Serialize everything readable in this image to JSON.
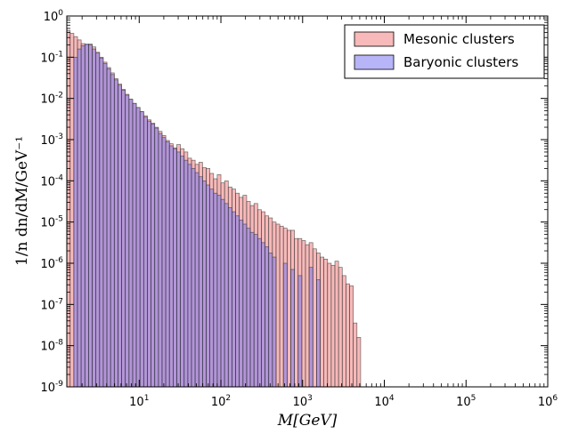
{
  "chart_data": {
    "type": "bar",
    "xlabel": "M[GeV]",
    "ylabel": "1/n  dn/dM/GeV⁻¹",
    "x_scale": "log",
    "y_scale": "log",
    "xlim": [
      1.3,
      1000000
    ],
    "ylim": [
      1e-09,
      1
    ],
    "x_ticks": [
      {
        "value": 10,
        "base": "10",
        "exp": "1"
      },
      {
        "value": 100,
        "base": "10",
        "exp": "2"
      },
      {
        "value": 1000,
        "base": "10",
        "exp": "3"
      },
      {
        "value": 10000,
        "base": "10",
        "exp": "4"
      },
      {
        "value": 100000,
        "base": "10",
        "exp": "5"
      },
      {
        "value": 1000000,
        "base": "10",
        "exp": "6"
      }
    ],
    "y_ticks": [
      {
        "value": 1e-09,
        "base": "10",
        "exp": "-9"
      },
      {
        "value": 1e-08,
        "base": "10",
        "exp": "-8"
      },
      {
        "value": 1e-07,
        "base": "10",
        "exp": "-7"
      },
      {
        "value": 1e-06,
        "base": "10",
        "exp": "-6"
      },
      {
        "value": 1e-05,
        "base": "10",
        "exp": "-5"
      },
      {
        "value": 0.0001,
        "base": "10",
        "exp": "-4"
      },
      {
        "value": 0.001,
        "base": "10",
        "exp": "-3"
      },
      {
        "value": 0.01,
        "base": "10",
        "exp": "-2"
      },
      {
        "value": 0.1,
        "base": "10",
        "exp": "-1"
      },
      {
        "value": 1,
        "base": "10",
        "exp": "0"
      }
    ],
    "bin_edges_log10": [
      0.11,
      0.155,
      0.2,
      0.245,
      0.29,
      0.335,
      0.38,
      0.425,
      0.47,
      0.515,
      0.56,
      0.605,
      0.65,
      0.695,
      0.74,
      0.785,
      0.83,
      0.875,
      0.92,
      0.965,
      1.01,
      1.055,
      1.1,
      1.145,
      1.19,
      1.235,
      1.28,
      1.325,
      1.37,
      1.415,
      1.46,
      1.505,
      1.55,
      1.595,
      1.64,
      1.685,
      1.73,
      1.775,
      1.82,
      1.865,
      1.91,
      1.955,
      2.0,
      2.045,
      2.09,
      2.135,
      2.18,
      2.225,
      2.27,
      2.315,
      2.36,
      2.405,
      2.45,
      2.495,
      2.54,
      2.585,
      2.63,
      2.675,
      2.72,
      2.765,
      2.81,
      2.855,
      2.9,
      2.945,
      2.99,
      3.035,
      3.08,
      3.125,
      3.17,
      3.215,
      3.26,
      3.305,
      3.35,
      3.395,
      3.44,
      3.485,
      3.53,
      3.575,
      3.62,
      3.665,
      3.71
    ],
    "series": [
      {
        "name": "Mesonic clusters",
        "color": "#f08080",
        "values_log10": [
          -0.35,
          -0.42,
          -0.5,
          -0.58,
          -0.67,
          -0.7,
          -0.68,
          -0.75,
          -0.88,
          -1.0,
          -1.12,
          -1.25,
          -1.38,
          -1.52,
          -1.65,
          -1.78,
          -1.9,
          -2.02,
          -2.12,
          -2.22,
          -2.32,
          -2.42,
          -2.52,
          -2.6,
          -2.7,
          -2.8,
          -2.9,
          -3.02,
          -3.1,
          -3.2,
          -3.12,
          -3.22,
          -3.3,
          -3.45,
          -3.5,
          -3.6,
          -3.55,
          -3.68,
          -3.7,
          -3.82,
          -3.95,
          -3.85,
          -4.05,
          -4.0,
          -4.15,
          -4.2,
          -4.3,
          -4.4,
          -4.35,
          -4.5,
          -4.6,
          -4.55,
          -4.7,
          -4.75,
          -4.85,
          -4.9,
          -5.0,
          -5.05,
          -5.1,
          -5.15,
          -5.2,
          -5.2,
          -5.4,
          -5.4,
          -5.45,
          -5.55,
          -5.5,
          -5.65,
          -5.75,
          -5.85,
          -5.9,
          -6.0,
          -6.05,
          -5.95,
          -6.1,
          -6.3,
          -6.5,
          -6.55,
          -7.45,
          -7.8
        ]
      },
      {
        "name": "Baryonic clusters",
        "color": "#7b78f0",
        "values_log10": [
          -9,
          -9,
          -1.0,
          -0.8,
          -0.72,
          -0.68,
          -0.7,
          -0.8,
          -0.9,
          -1.02,
          -1.15,
          -1.28,
          -1.42,
          -1.55,
          -1.68,
          -1.8,
          -1.92,
          -2.02,
          -2.12,
          -2.22,
          -2.32,
          -2.45,
          -2.55,
          -2.62,
          -2.72,
          -2.85,
          -2.95,
          -3.05,
          -3.15,
          -3.22,
          -3.3,
          -3.4,
          -3.5,
          -3.6,
          -3.7,
          -3.8,
          -3.9,
          -4.0,
          -4.1,
          -4.2,
          -4.3,
          -4.35,
          -4.45,
          -4.55,
          -4.65,
          -4.75,
          -4.85,
          -4.95,
          -5.05,
          -5.15,
          -5.25,
          -5.3,
          -5.4,
          -5.5,
          -5.6,
          -5.75,
          -5.85,
          -9,
          -9,
          -6.0,
          -9,
          -6.15,
          -9,
          -6.3,
          -9,
          -9,
          -6.1,
          -9,
          -6.4,
          -9,
          -9,
          -9,
          -9,
          -9,
          -9,
          -9,
          -9,
          -9,
          -9,
          -9
        ]
      }
    ],
    "legend": {
      "position": "top-right"
    },
    "grid": false
  }
}
